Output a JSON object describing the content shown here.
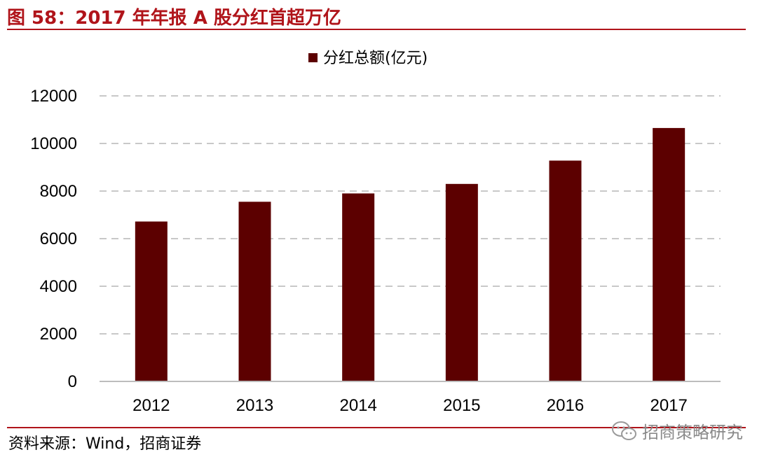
{
  "figure": {
    "title": "图 58：2017 年年报 A 股分红首超万亿",
    "source": "资料来源：Wind，招商证券",
    "watermark": "招商策略研究",
    "watermark_icon": "wechat-icon"
  },
  "chart_data": {
    "type": "bar",
    "categories": [
      "2012",
      "2013",
      "2014",
      "2015",
      "2016",
      "2017"
    ],
    "series": [
      {
        "name": "分红总额(亿元)",
        "values": [
          6720,
          7550,
          7900,
          8300,
          9280,
          10650
        ],
        "color": "#5c0000"
      }
    ],
    "ylim": [
      0,
      12000
    ],
    "yticks": [
      "0",
      "2000",
      "4000",
      "6000",
      "8000",
      "10000",
      "12000"
    ],
    "grid": "dashed horizontal",
    "legend": "top-center"
  },
  "colors": {
    "accent": "#b0141a",
    "bar": "#5c0000",
    "grid": "#c8c8c8"
  }
}
